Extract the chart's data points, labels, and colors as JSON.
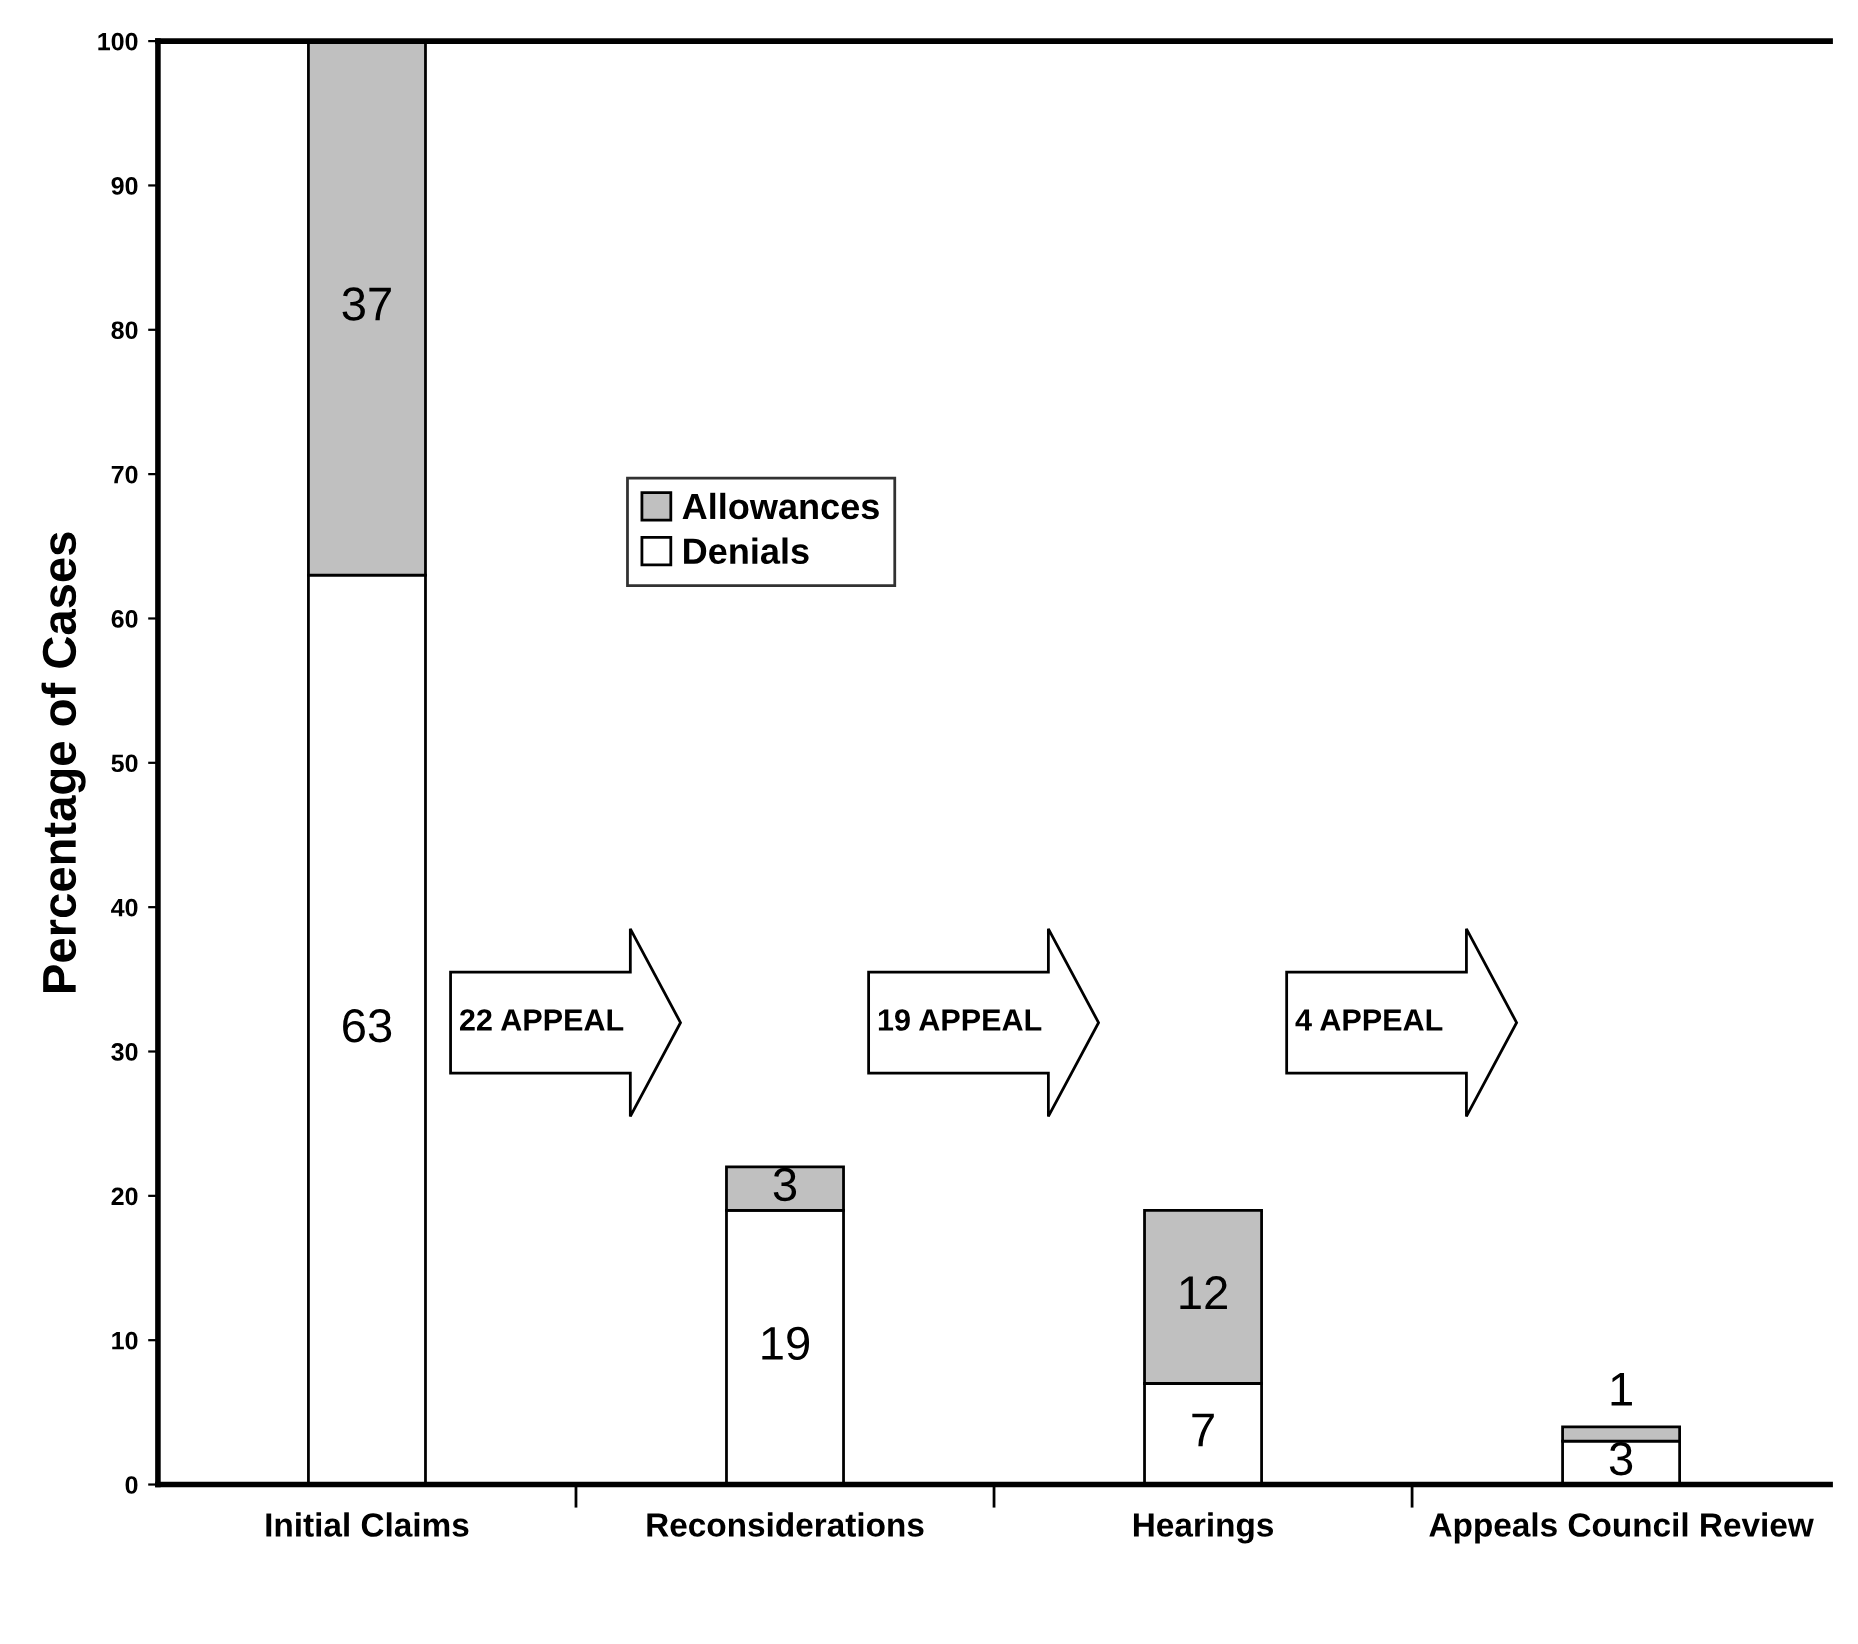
{
  "chart_data": {
    "type": "bar",
    "stacked": true,
    "ylabel": "Percentage of Cases",
    "categories": [
      "Initial Claims",
      "Reconsiderations",
      "Hearings",
      "Appeals Council Review"
    ],
    "series": [
      {
        "name": "Denials",
        "color": "#ffffff",
        "values": [
          63,
          19,
          7,
          3
        ]
      },
      {
        "name": "Allowances",
        "color": "#c0c0c0",
        "values": [
          37,
          3,
          12,
          1
        ]
      }
    ],
    "ylim": [
      0,
      100
    ],
    "yticks": [
      0,
      10,
      20,
      30,
      40,
      50,
      60,
      70,
      80,
      90,
      100
    ],
    "data_labels": true,
    "legend": "left",
    "grid": false,
    "annotations": [
      "22 APPEAL",
      "19 APPEAL",
      "4 APPEAL"
    ]
  }
}
